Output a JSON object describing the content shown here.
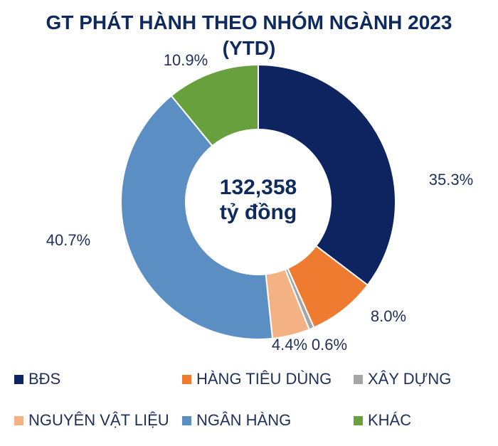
{
  "title_line1": "GT PHÁT HÀNH THEO NHÓM NGÀNH 2023",
  "title_line2": "(YTD)",
  "center_value": "132,358",
  "center_unit": "tỷ đồng",
  "chart_data": {
    "type": "pie",
    "title": "GT PHÁT HÀNH THEO NHÓM NGÀNH 2023 (YTD)",
    "donut": true,
    "categories": [
      "BĐS",
      "HÀNG TIÊU DÙNG",
      "XÂY DỰNG",
      "NGUYÊN VẬT LIỆU",
      "NGÂN HÀNG",
      "KHÁC"
    ],
    "values": [
      35.3,
      8.0,
      0.6,
      4.4,
      40.7,
      10.9
    ],
    "labels": [
      "35.3%",
      "8.0%",
      "0.6%",
      "4.4%",
      "40.7%",
      "10.9%"
    ],
    "colors": [
      "#0e2461",
      "#ee7b30",
      "#a5a5a5",
      "#f4b183",
      "#5b8fc4",
      "#68a03d"
    ],
    "legend_placement": "bottom"
  }
}
